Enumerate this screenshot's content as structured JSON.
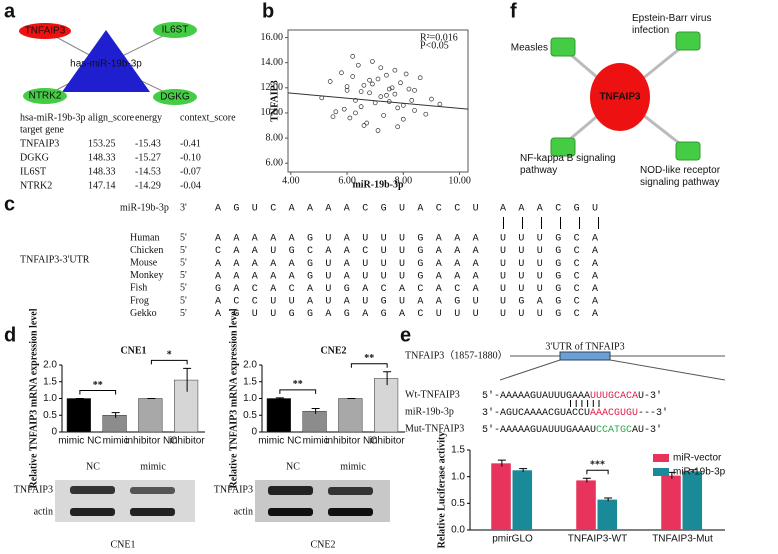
{
  "panel_labels": [
    "a",
    "b",
    "c",
    "d",
    "e",
    "f"
  ],
  "network_a": {
    "center": "has-miR-19b-3p",
    "nodes": [
      "TNFAIP3",
      "IL6ST",
      "NTRK2",
      "DGKG"
    ]
  },
  "table_a": {
    "header": [
      "hsa-miR-19b-3p",
      "align_score",
      "energy",
      "context_score"
    ],
    "subheader": "target gene",
    "rows": [
      [
        "TNFAIP3",
        "153.25",
        "-15.43",
        "-0.41"
      ],
      [
        "DGKG",
        "148.33",
        "-15.27",
        "-0.10"
      ],
      [
        "IL6ST",
        "148.33",
        "-14.53",
        "-0.07"
      ],
      [
        "NTRK2",
        "147.14",
        "-14.29",
        "-0.04"
      ]
    ]
  },
  "alignment_c": {
    "group_label": "TNFAIP3-3'UTR",
    "mirna": {
      "name": "miR-19b-3p",
      "end": "3'",
      "seq": "AGUCAAAACGUACCU",
      "seed": "AAACGU"
    },
    "species": [
      {
        "name": "Human",
        "end": "5'",
        "seq": "AAAAAGUAUUUGAAA",
        "seed": "UUUGCA"
      },
      {
        "name": "Chicken",
        "end": "5'",
        "seq": "CAAUGCAACUUGAAA",
        "seed": "UUUGCA"
      },
      {
        "name": "Mouse",
        "end": "5'",
        "seq": "AAAAAGUAUUUGAAA",
        "seed": "UUUGCA"
      },
      {
        "name": "Monkey",
        "end": "5'",
        "seq": "AAAAAGUAUUUGAAA",
        "seed": "UUUGCA"
      },
      {
        "name": "Fish",
        "end": "5'",
        "seq": "GACACAUGACACACA",
        "seed": "UUUGCA"
      },
      {
        "name": "Frog",
        "end": "5'",
        "seq": "ACCUUAUAUGUAAGU",
        "seed": "UGAGCA"
      },
      {
        "name": "Gekko",
        "end": "5'",
        "seq": "AGUUGGAGAGACUUU",
        "seed": "UUUGCA"
      }
    ]
  },
  "blots_d": [
    {
      "lanes": [
        "NC",
        "mimic"
      ],
      "rows": [
        "TNFAIP3",
        "actin"
      ],
      "caption": "CNE1"
    },
    {
      "lanes": [
        "NC",
        "mimic"
      ],
      "rows": [
        "TNFAIP3",
        "actin"
      ],
      "caption": "CNE2"
    }
  ],
  "construct_e": {
    "gene": "TNFAIP3（1857-1880）",
    "utr": "3'UTR of TNFAIP3",
    "rows": [
      {
        "name": "Wt-TNFAIP3",
        "pre": "5'-AAAAAGUAUUUGAAA",
        "site": "UUUGCACA",
        "post": "U-3'",
        "color": "#e0204a"
      },
      {
        "name": "miR-19b-3p",
        "pre": "3'-AGUCAAAACGUACCU",
        "site": "AAACGUGU",
        "post": "---3'",
        "color": "#e0204a"
      },
      {
        "name": "Mut-TNFAIP3",
        "pre": "5'-AAAAAGUAUUUGAAAU",
        "site": "CCATGC",
        "post": "AU-3'",
        "color": "#2aa84a"
      }
    ]
  },
  "network_f": {
    "center": "TNFAIP3",
    "nodes": [
      "Measles",
      "Epstein-Barr virus infection",
      "NF-kappa B signaling pathway",
      "NOD-like receptor signaling pathway"
    ]
  },
  "chart_data": [
    {
      "type": "scatter",
      "xlabel": "miR-19b-3p",
      "ylabel": "TNFAIP3",
      "annotations": [
        "R²=0.016",
        "P<0.05"
      ],
      "x": [
        5.1,
        5.4,
        5.6,
        5.8,
        6.0,
        6.1,
        6.2,
        6.3,
        6.4,
        6.5,
        6.6,
        6.7,
        6.8,
        6.9,
        7.0,
        7.1,
        7.2,
        7.3,
        7.4,
        7.5,
        7.6,
        7.7,
        7.8,
        7.9,
        8.0,
        8.2,
        8.4,
        8.6,
        8.8,
        9.0,
        5.9,
        6.2,
        6.5,
        6.8,
        7.1,
        7.4,
        7.7,
        8.0,
        8.3,
        6.0,
        6.6,
        7.2,
        7.8,
        8.4,
        5.5,
        6.3,
        6.9,
        7.5,
        8.1,
        9.3
      ],
      "y": [
        11.2,
        12.5,
        10.1,
        13.2,
        11.8,
        9.6,
        12.9,
        11.0,
        13.8,
        10.5,
        12.2,
        9.2,
        11.6,
        14.1,
        10.8,
        12.7,
        11.3,
        9.8,
        13.0,
        10.9,
        12.0,
        11.5,
        8.9,
        12.4,
        10.6,
        11.9,
        10.2,
        12.8,
        9.9,
        11.1,
        10.3,
        14.5,
        11.7,
        12.6,
        8.6,
        11.4,
        13.4,
        9.5,
        11.0,
        12.1,
        9.0,
        13.6,
        10.4,
        11.8,
        9.7,
        10.0,
        12.3,
        11.9,
        13.1,
        10.7
      ],
      "fit": {
        "x": [
          3.9,
          10.3
        ],
        "y": [
          11.6,
          10.3
        ]
      },
      "xlim": [
        3.9,
        10.3
      ],
      "ylim": [
        5.3,
        16.6
      ],
      "xticks": [
        {
          "value": 4,
          "label": "4.00"
        },
        {
          "value": 6,
          "label": "6.00"
        },
        {
          "value": 8,
          "label": "8.00"
        },
        {
          "value": 10,
          "label": "10.00"
        }
      ],
      "yticks": [
        {
          "value": 6,
          "label": "6.00"
        },
        {
          "value": 8,
          "label": "8.00"
        },
        {
          "value": 10,
          "label": "10.00"
        },
        {
          "value": 12,
          "label": "12.00"
        },
        {
          "value": 14,
          "label": "14.00"
        },
        {
          "value": 16,
          "label": "16.00"
        }
      ]
    },
    {
      "type": "bar",
      "title": "CNE1",
      "ylabel": "Relative TNFAIP3 mRNA expression level",
      "categories": [
        "mimic NC",
        "mimic",
        "inhibitor NC",
        "inhibitor"
      ],
      "colors": [
        "#000000",
        "#8c8c8c",
        "#a8a8a8",
        "#d6d6d6"
      ],
      "series": [
        {
          "values": [
            1.0,
            0.5,
            1.0,
            1.55
          ],
          "errors": [
            0,
            0.08,
            0,
            0.35
          ]
        }
      ],
      "annotations": [
        "**",
        "*"
      ],
      "ylim": [
        0,
        2
      ],
      "yticks": [
        0,
        0.5,
        {
          "value": 1,
          "label": "1.0"
        },
        1.5,
        {
          "value": 2,
          "label": "2.0"
        }
      ]
    },
    {
      "type": "bar",
      "title": "CNE2",
      "ylabel": "Relative TNFAIP3 mRNA expression level",
      "categories": [
        "mimic NC",
        "mimic",
        "inhibitor NC",
        "inhibitor"
      ],
      "colors": [
        "#000000",
        "#8c8c8c",
        "#a8a8a8",
        "#d6d6d6"
      ],
      "series": [
        {
          "values": [
            1.0,
            0.62,
            1.0,
            1.6
          ],
          "errors": [
            0.02,
            0.08,
            0,
            0.2
          ]
        }
      ],
      "annotations": [
        "**",
        "**"
      ],
      "ylim": [
        0,
        2
      ],
      "yticks": [
        0,
        0.5,
        {
          "value": 1,
          "label": "1.0"
        },
        1.5,
        {
          "value": 2,
          "label": "2.0"
        }
      ]
    },
    {
      "type": "bar",
      "ylabel": "Relative Luciferase activity",
      "categories": [
        "pmirGLO",
        "TNFAIP3-WT",
        "TNFAIP3-Mut"
      ],
      "series": [
        {
          "name": "miR-vector",
          "color": "#e8335d",
          "values": [
            1.25,
            0.93,
            1.02
          ],
          "errors": [
            0.06,
            0.04,
            0.06
          ]
        },
        {
          "name": "miR-19b-3p",
          "color": "#1a8a99",
          "values": [
            1.12,
            0.57,
            1.1
          ],
          "errors": [
            0.03,
            0.03,
            0.03
          ]
        }
      ],
      "annotations": [
        "***"
      ],
      "legend": "upper right",
      "ylim": [
        0,
        1.5
      ],
      "yticks": [
        {
          "value": 0,
          "label": "0.0"
        },
        0.5,
        {
          "value": 1,
          "label": "1.0"
        },
        1.5
      ]
    }
  ]
}
